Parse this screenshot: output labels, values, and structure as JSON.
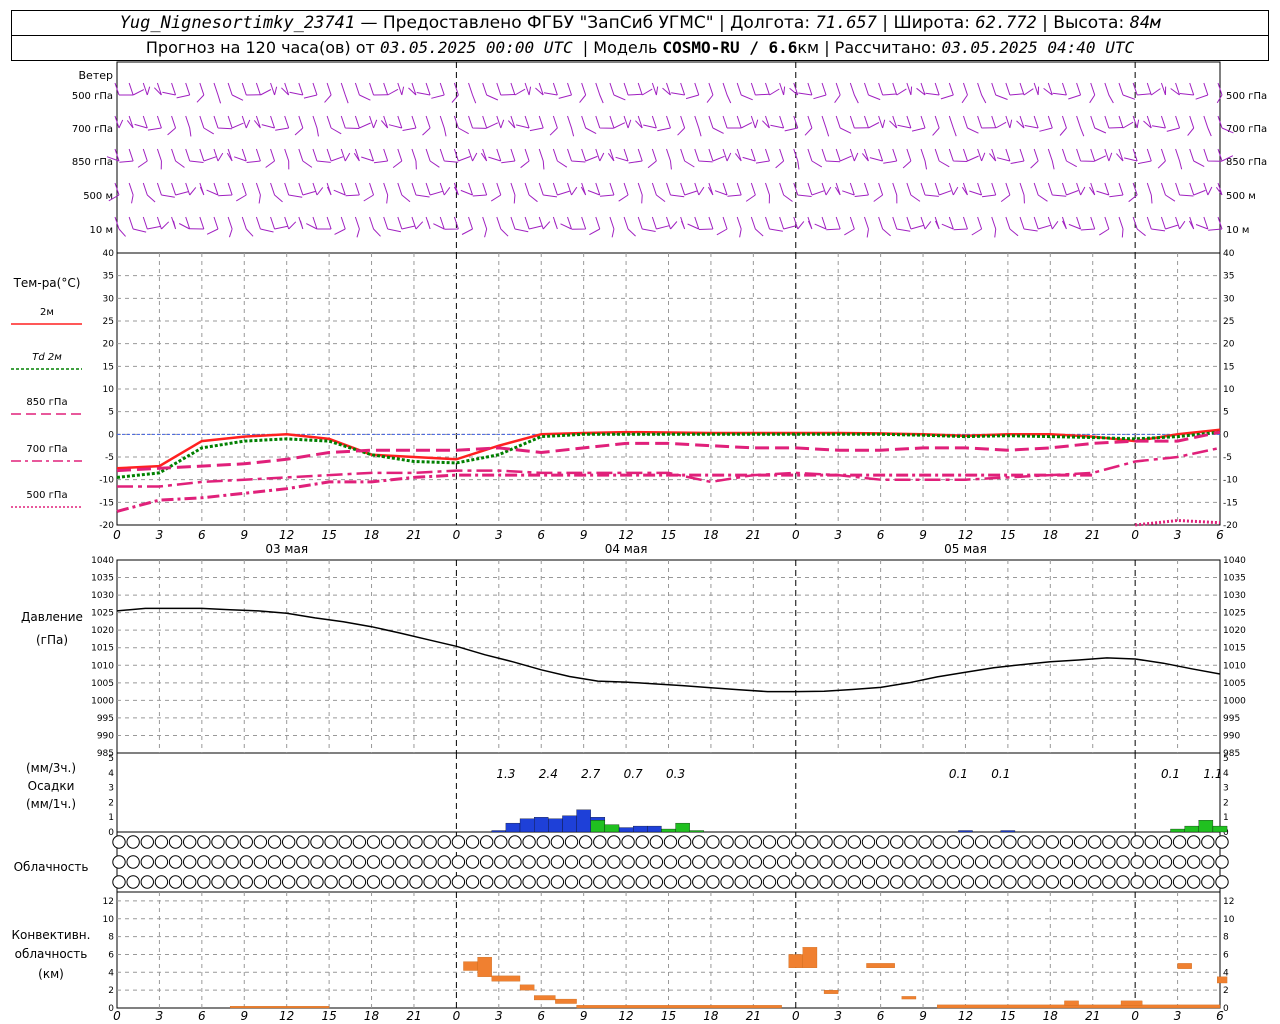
{
  "header": {
    "station": "Yug_Nignesortimky_23741",
    "provider": "— Предоставлено ФГБУ \"ЗапСиб УГМС\"",
    "lon_label": "Долгота:",
    "lon": "71.657",
    "lat_label": "Широта:",
    "lat": "62.772",
    "alt_label": "Высота:",
    "alt": "84м",
    "forecast_prefix": "Прогноз на 120 часа(ов) от",
    "forecast_start": "03.05.2025 00:00 UTC",
    "model_label": "Модель",
    "model": "COSMO-RU / 6.6",
    "model_res_unit": "км",
    "computed_label": "Рассчитано:",
    "computed": "03.05.2025 04:40 UTC"
  },
  "colors": {
    "wind": "#a020c0",
    "t2m": "#ff2020",
    "td2m": "#008000",
    "t850": "#e0207a",
    "t700": "#e0207a",
    "t500": "#e0207a",
    "pressure": "#000000",
    "precip_conv": "#1e40d8",
    "precip_large": "#20c020",
    "conv_cloud": "#f08030",
    "zero_line": "#4060e0"
  },
  "chart_data": [
    {
      "type": "wind-barbs",
      "title": "Ветер",
      "levels": [
        "500 гПа",
        "700 гПа",
        "850 гПа",
        "500 м",
        "10 м"
      ]
    },
    {
      "type": "line",
      "title": "Тем-ра(°С)",
      "ylim": [
        -20,
        40
      ],
      "yticks": [
        -20,
        -15,
        -10,
        -5,
        0,
        5,
        10,
        15,
        20,
        25,
        30,
        35,
        40
      ],
      "legend": [
        {
          "label": "2м",
          "key": "t2m"
        },
        {
          "label": "Td",
          "label2": "2м",
          "key": "td2m"
        },
        {
          "label": "850",
          "label2": "гПа",
          "key": "t850"
        },
        {
          "label": "700",
          "label2": "гПа",
          "key": "t700"
        },
        {
          "label": "500",
          "label2": "гПа",
          "key": "t500"
        }
      ],
      "x": [
        0,
        3,
        6,
        9,
        12,
        15,
        18,
        21,
        24,
        27,
        30,
        33,
        36,
        39,
        42,
        45,
        48,
        51,
        54,
        57,
        60,
        63,
        66,
        69,
        72,
        75,
        78
      ],
      "series": [
        {
          "key": "t2m",
          "values": [
            -7.5,
            -7,
            -1.5,
            -0.5,
            0,
            -1,
            -4.5,
            -5,
            -5.5,
            -2.5,
            0,
            0.3,
            0.5,
            0.4,
            0.3,
            0.3,
            0.3,
            0.3,
            0.2,
            0,
            -0.3,
            0,
            0,
            -0.5,
            -1.5,
            0,
            1
          ]
        },
        {
          "key": "td2m",
          "values": [
            -9.5,
            -8.5,
            -3,
            -1.5,
            -1,
            -1.5,
            -4.5,
            -6,
            -6.3,
            -4.5,
            -0.5,
            0,
            0,
            0,
            0,
            0,
            0,
            0,
            0,
            -0.2,
            -0.5,
            -0.3,
            -0.5,
            -0.7,
            -1,
            -0.5,
            0.5
          ]
        },
        {
          "key": "t850",
          "values": [
            -8,
            -7.5,
            -7,
            -6.5,
            -5.5,
            -4,
            -3.5,
            -3.5,
            -3.5,
            -3,
            -4,
            -3,
            -2,
            -2,
            -2.5,
            -3,
            -3,
            -3.5,
            -3.5,
            -3,
            -3,
            -3.5,
            -3,
            -2,
            -1.5,
            -1.5,
            0.5
          ]
        },
        {
          "key": "t700",
          "values": [
            -11.5,
            -11.5,
            -10.5,
            -10,
            -9.5,
            -9,
            -8.5,
            -8.5,
            -8,
            -8,
            -8.5,
            -8.5,
            -8.5,
            -8.5,
            -10.5,
            -9,
            -8.5,
            -9,
            -10,
            -10,
            -10,
            -9.5,
            -9,
            -8.5,
            -6,
            -5,
            -3
          ]
        },
        {
          "key": "t500",
          "values": [
            -17,
            -14.5,
            -14,
            -13,
            -12,
            -10.5,
            -10.5,
            -9.5,
            -9,
            -9,
            -9,
            -9,
            -9,
            -9,
            -9,
            -9,
            -9,
            -9,
            -9,
            -9,
            -9,
            -9,
            -9,
            -9,
            -20,
            -19,
            -19.5
          ]
        }
      ]
    },
    {
      "type": "line",
      "title": "Давление",
      "subtitle": "(гПа)",
      "ylim": [
        985,
        1040
      ],
      "yticks": [
        985,
        990,
        995,
        1000,
        1005,
        1010,
        1015,
        1020,
        1025,
        1030,
        1035,
        1040
      ],
      "x": [
        0,
        2,
        4,
        6,
        8,
        10,
        12,
        14,
        16,
        18,
        20,
        22,
        24,
        26,
        28,
        30,
        32,
        34,
        36,
        38,
        40,
        42,
        44,
        46,
        48,
        50,
        52,
        54,
        56,
        58,
        60,
        62,
        64,
        66,
        68,
        70,
        72,
        74,
        76,
        78
      ],
      "series": [
        {
          "key": "pressure",
          "values": [
            1025.5,
            1026.2,
            1026.2,
            1026.2,
            1025.8,
            1025.5,
            1024.8,
            1023.5,
            1022.4,
            1021,
            1019.2,
            1017.3,
            1015.4,
            1013,
            1011,
            1008.7,
            1006.8,
            1005.5,
            1005.2,
            1004.7,
            1004.2,
            1003.6,
            1003,
            1002.5,
            1002.5,
            1002.6,
            1003.1,
            1003.7,
            1005,
            1006.7,
            1008,
            1009.3,
            1010.2,
            1011,
            1011.5,
            1012.1,
            1011.8,
            1010.6,
            1009,
            1007.5
          ]
        }
      ]
    },
    {
      "type": "bar",
      "title": "Осадки",
      "ylabel_top": "(мм/3ч.)",
      "ylabel_bottom": "(мм/1ч.)",
      "ylim": [
        0,
        5
      ],
      "yticks": [
        0,
        1,
        2,
        3,
        4,
        5
      ],
      "totals": [
        {
          "x": 27.5,
          "label": "1.3"
        },
        {
          "x": 30.5,
          "label": "2.4"
        },
        {
          "x": 33.5,
          "label": "2.7"
        },
        {
          "x": 36.5,
          "label": "0.7"
        },
        {
          "x": 39.5,
          "label": "0.3"
        },
        {
          "x": 59.5,
          "label": "0.1"
        },
        {
          "x": 62.5,
          "label": "0.1"
        },
        {
          "x": 74.5,
          "label": "0.1"
        },
        {
          "x": 77.5,
          "label": "1.1"
        }
      ],
      "bars_convective": [
        {
          "x": 27,
          "v": 0.1
        },
        {
          "x": 28,
          "v": 0.6
        },
        {
          "x": 29,
          "v": 0.9
        },
        {
          "x": 30,
          "v": 1.0
        },
        {
          "x": 31,
          "v": 0.9
        },
        {
          "x": 32,
          "v": 1.1
        },
        {
          "x": 33,
          "v": 1.5
        },
        {
          "x": 34,
          "v": 1.0
        },
        {
          "x": 35,
          "v": 0.4
        },
        {
          "x": 36,
          "v": 0.3
        },
        {
          "x": 37,
          "v": 0.4
        },
        {
          "x": 38,
          "v": 0.4
        },
        {
          "x": 60,
          "v": 0.1
        },
        {
          "x": 63,
          "v": 0.1
        }
      ],
      "bars_largescale": [
        {
          "x": 34,
          "v": 0.8
        },
        {
          "x": 35,
          "v": 0.5
        },
        {
          "x": 39,
          "v": 0.2
        },
        {
          "x": 40,
          "v": 0.6
        },
        {
          "x": 41,
          "v": 0.1
        },
        {
          "x": 75,
          "v": 0.2
        },
        {
          "x": 76,
          "v": 0.4
        },
        {
          "x": 77,
          "v": 0.8
        },
        {
          "x": 78,
          "v": 0.4
        }
      ]
    },
    {
      "type": "table",
      "title": "Облачность",
      "rows": 3,
      "cols": 79,
      "cover_scale": "0=clear ... 4=overcast",
      "cover": [
        [
          0,
          0,
          0,
          0,
          0,
          0,
          0,
          0,
          0,
          0,
          0,
          0,
          0,
          0,
          0,
          0,
          0,
          0,
          0,
          0,
          0,
          0,
          0,
          0,
          0,
          0,
          0,
          0,
          0,
          0,
          0,
          0,
          0,
          0,
          0,
          0,
          0,
          0,
          0,
          0,
          0,
          0,
          0,
          0,
          0,
          0,
          0,
          0,
          0,
          0,
          0,
          0,
          0,
          0,
          0,
          0,
          0,
          0,
          0,
          0,
          0,
          0,
          0,
          0,
          0,
          0,
          0,
          0,
          0,
          0,
          0,
          0,
          0,
          0,
          0,
          0,
          0,
          0,
          0
        ],
        [
          0,
          0,
          0,
          0,
          0,
          0,
          0,
          0,
          0,
          0,
          0,
          0,
          0,
          0,
          0,
          0,
          0,
          0,
          0,
          0,
          0,
          0,
          0,
          0,
          0,
          0,
          0,
          0,
          0,
          0,
          0,
          0,
          0,
          0,
          0,
          0,
          0,
          0,
          0,
          0,
          0,
          0,
          0,
          0,
          0,
          0,
          0,
          0,
          0,
          0,
          0,
          0,
          0,
          0,
          0,
          0,
          0,
          0,
          0,
          0,
          0,
          0,
          0,
          0,
          0,
          0,
          0,
          0,
          0,
          0,
          0,
          0,
          0,
          0,
          0,
          0,
          0,
          0,
          0
        ],
        [
          0,
          0,
          0,
          0,
          0,
          0,
          0,
          0,
          0,
          0,
          0,
          0,
          0,
          0,
          0,
          0,
          0,
          0,
          0,
          0,
          0,
          0,
          0,
          0,
          0,
          0,
          0,
          0,
          0,
          0,
          0,
          0,
          0,
          0,
          0,
          0,
          0,
          0,
          0,
          0,
          0,
          0,
          0,
          0,
          0,
          0,
          0,
          0,
          0,
          0,
          0,
          0,
          0,
          0,
          0,
          0,
          0,
          0,
          0,
          0,
          0,
          0,
          0,
          0,
          0,
          0,
          0,
          0,
          0,
          0,
          0,
          0,
          0,
          0,
          0,
          0,
          0,
          0,
          0
        ]
      ]
    },
    {
      "type": "bar",
      "title": "Конвективн.",
      "title2": "облачность",
      "ylabel": "(км)",
      "ylim": [
        0,
        13
      ],
      "yticks": [
        0,
        2,
        4,
        6,
        8,
        10,
        12
      ],
      "layers": [
        {
          "x0": 8,
          "x1": 15,
          "base": 0,
          "top": 0.2
        },
        {
          "x0": 24.5,
          "x1": 25.5,
          "base": 4.2,
          "top": 5.2
        },
        {
          "x0": 25.5,
          "x1": 26.5,
          "base": 3.5,
          "top": 5.7
        },
        {
          "x0": 26.5,
          "x1": 28.5,
          "base": 3.0,
          "top": 3.6
        },
        {
          "x0": 28.5,
          "x1": 29.5,
          "base": 2.0,
          "top": 2.6
        },
        {
          "x0": 29.5,
          "x1": 31,
          "base": 0.9,
          "top": 1.4
        },
        {
          "x0": 31,
          "x1": 32.5,
          "base": 0.5,
          "top": 1.0
        },
        {
          "x0": 32.5,
          "x1": 47,
          "base": 0,
          "top": 0.3
        },
        {
          "x0": 47.5,
          "x1": 48.5,
          "base": 4.5,
          "top": 6.0
        },
        {
          "x0": 48.5,
          "x1": 49.5,
          "base": 4.5,
          "top": 6.8
        },
        {
          "x0": 50,
          "x1": 51,
          "base": 1.6,
          "top": 2.0
        },
        {
          "x0": 53,
          "x1": 55,
          "base": 4.5,
          "top": 5.0
        },
        {
          "x0": 55.5,
          "x1": 56.5,
          "base": 1.0,
          "top": 1.3
        },
        {
          "x0": 58,
          "x1": 78,
          "base": 0,
          "top": 0.35
        },
        {
          "x0": 67,
          "x1": 68,
          "base": 0.3,
          "top": 0.8
        },
        {
          "x0": 71,
          "x1": 72.5,
          "base": 0.3,
          "top": 0.8
        },
        {
          "x0": 75,
          "x1": 76,
          "base": 4.4,
          "top": 5.0
        },
        {
          "x0": 77.8,
          "x1": 78.5,
          "base": 2.8,
          "top": 3.5
        }
      ]
    }
  ],
  "axis": {
    "hour_ticks": [
      "0",
      "3",
      "6",
      "9",
      "12",
      "15",
      "18",
      "21",
      "0",
      "3",
      "6",
      "9",
      "12",
      "15",
      "18",
      "21",
      "0",
      "3",
      "6",
      "9",
      "12",
      "15",
      "18",
      "21",
      "0",
      "3",
      "6"
    ],
    "day_labels": [
      "03 мая",
      "04 мая",
      "05 мая"
    ]
  }
}
